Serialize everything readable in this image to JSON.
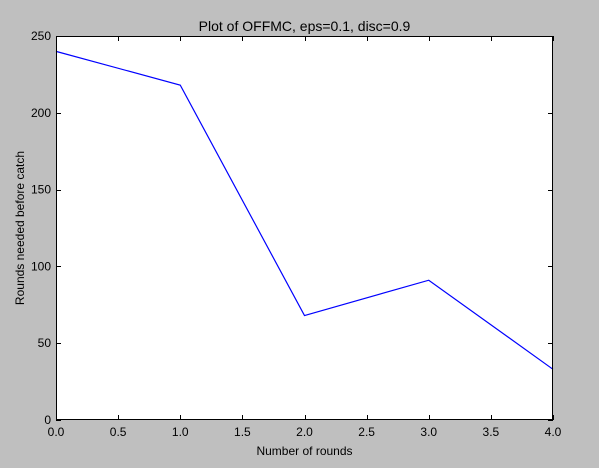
{
  "chart_data": {
    "type": "line",
    "title": "Plot of OFFMC, eps=0.1, disc=0.9",
    "xlabel": "Number of rounds",
    "ylabel": "Rounds needed before catch",
    "xlim": [
      0.0,
      4.0
    ],
    "ylim": [
      0,
      250
    ],
    "x_ticks": [
      0.0,
      0.5,
      1.0,
      1.5,
      2.0,
      2.5,
      3.0,
      3.5,
      4.0
    ],
    "x_tick_labels": [
      "0.0",
      "0.5",
      "1.0",
      "1.5",
      "2.0",
      "2.5",
      "3.0",
      "3.5",
      "4.0"
    ],
    "y_ticks": [
      0,
      50,
      100,
      150,
      200,
      250
    ],
    "y_tick_labels": [
      "0",
      "50",
      "100",
      "150",
      "200",
      "250"
    ],
    "grid": false,
    "series": [
      {
        "color": "#0000ff",
        "x": [
          0,
          1,
          2,
          3,
          4
        ],
        "y": [
          240,
          218,
          68,
          91,
          33
        ]
      }
    ]
  },
  "colors": {
    "figure_background": "#bfbfbf",
    "axes_background": "#ffffff",
    "axes_edge": "#000000"
  }
}
